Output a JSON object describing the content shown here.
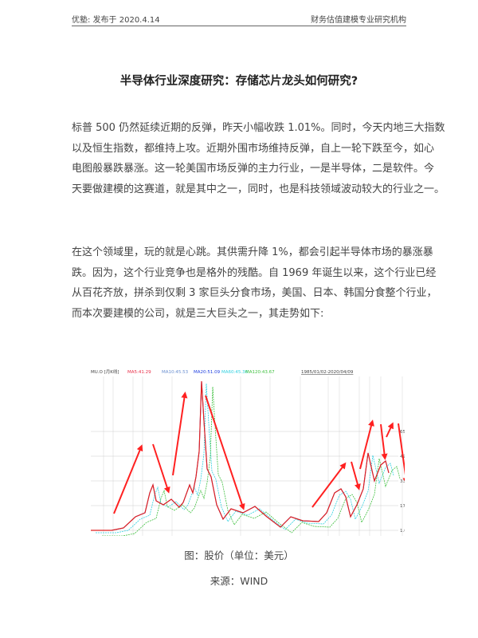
{
  "header": {
    "left": "优塾: 发布于 2020.4.14",
    "right": "财务估值建模专业研究机构"
  },
  "title": "半导体行业深度研究：存储芯片龙头如何研究?",
  "paragraph1": [
    "标普 500 仍然延续近期的反弹，昨天小幅收跌 1.01%。同时，今天内地三大指数",
    "以及恒生指数，都维持上攻。近期外围市场维持反弹，自上一轮下跌至今，如心",
    "电图般暴跌暴涨。这一轮美国市场反弹的主力行业，一是半导体，二是软件。今",
    "天要做建模的这赛道，就是其中之一，同时，也是科技领域波动较大的行业之一。"
  ],
  "paragraph2": [
    "在这个领域里，玩的就是心跳。其供需升降 1%，都会引起半导体市场的暴涨暴",
    "跌。因为，这个行业竞争也是格外的残酷。自 1969 年诞生以来，这个行业已经",
    "从百花齐放，拼杀到仅剩 3 家巨头分食市场，美国、日本、韩国分食整个行业，",
    "而本次要建模的公司，就是三大巨头之一，其走势如下:"
  ],
  "chart": {
    "legend": [
      "MU.O [月K线]",
      "MA5:41.29",
      "MA10:45.53",
      "MA20:51.09",
      "MA60:45.36",
      "MA120:43.67"
    ],
    "legend_colors": [
      "#444444",
      "#e8304a",
      "#6a8fd0",
      "#2040e0",
      "#30d0e0",
      "#40c040"
    ],
    "range_label": "1985/01/02-2020/04/09",
    "y_ticks": [
      "65.00",
      "49.00",
      "33.00",
      "17.00",
      "1.00"
    ],
    "up_color": "#e02020",
    "down_color": "#20a040",
    "arrow_color": "#ff2020"
  },
  "caption": "图：股价（单位：美元）",
  "source": "来源：WIND"
}
